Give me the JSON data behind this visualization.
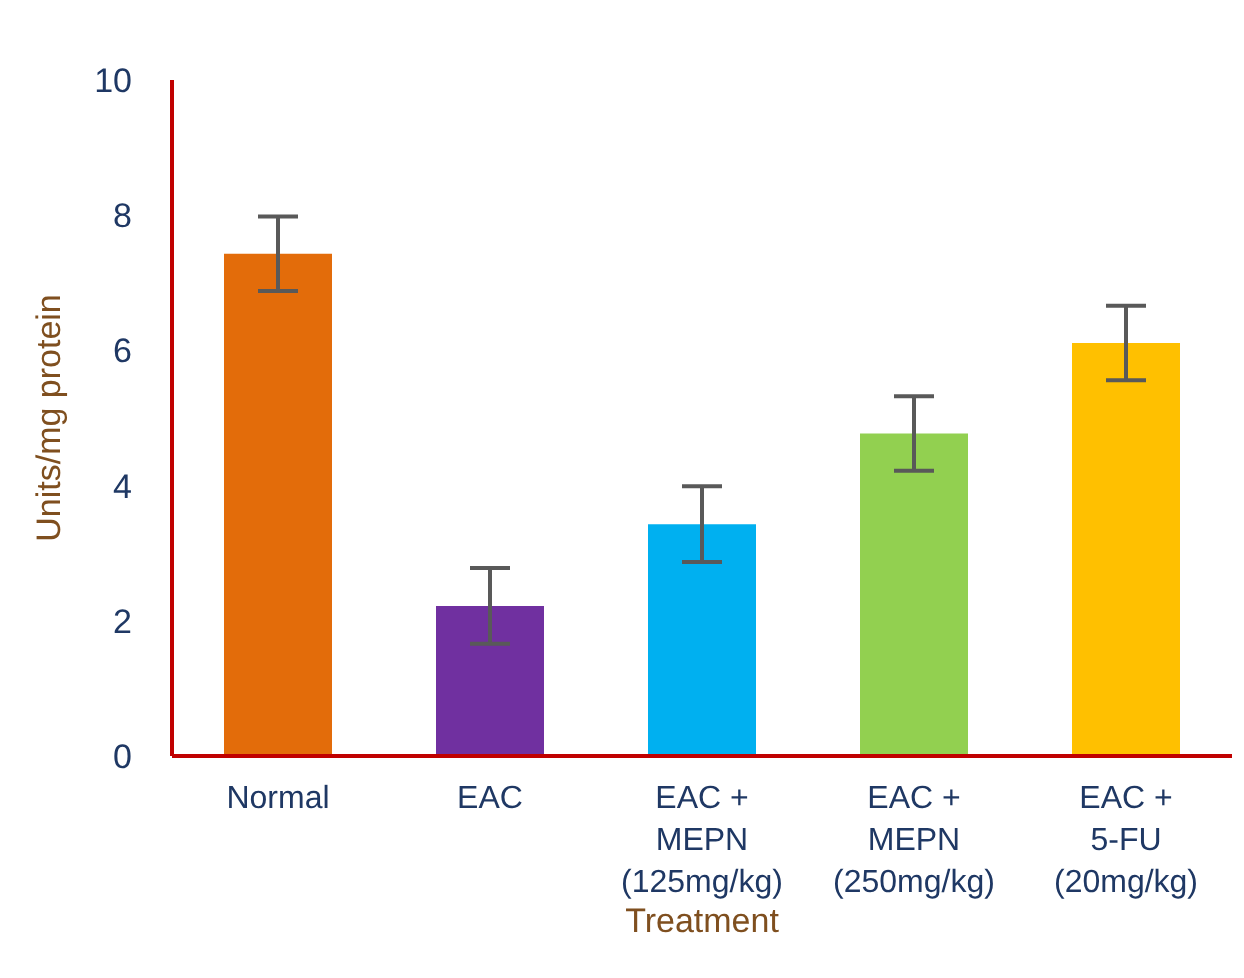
{
  "chart_data": {
    "type": "bar",
    "xlabel": "Treatment",
    "ylabel": "Units/mg protein",
    "categories": [
      "Normal",
      "EAC",
      "EAC + MEPN (125mg/kg)",
      "EAC + MEPN (250mg/kg)",
      "EAC + 5-FU (20mg/kg)"
    ],
    "values": [
      7.43,
      2.22,
      3.43,
      4.77,
      6.11
    ],
    "errors": [
      0.55,
      0.56,
      0.56,
      0.55,
      0.55
    ],
    "colors": [
      "#e36c0a",
      "#7030a0",
      "#00b0f0",
      "#92d050",
      "#ffc000"
    ],
    "ylim": [
      0,
      10
    ],
    "yticks": [
      0,
      2,
      4,
      6,
      8,
      10
    ],
    "grid": false,
    "legend": false
  }
}
